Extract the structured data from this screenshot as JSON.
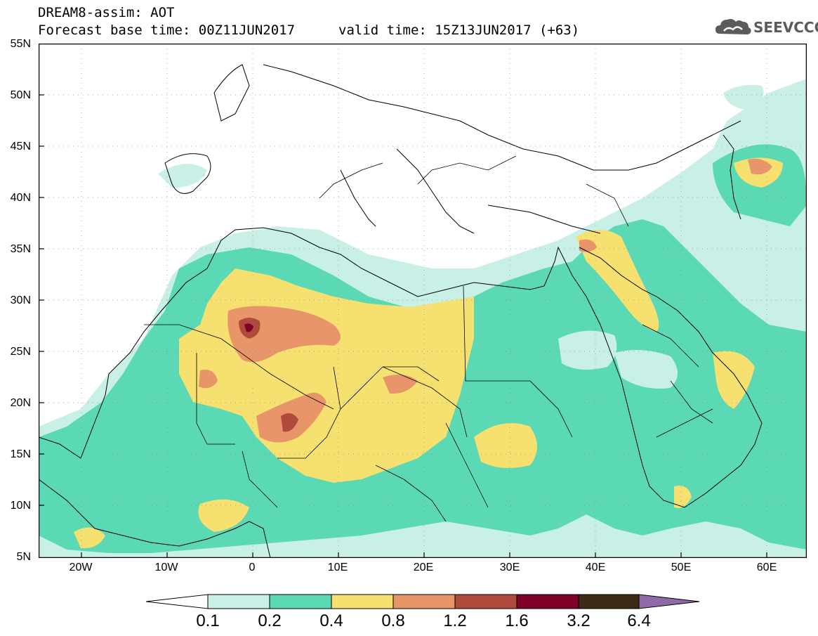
{
  "title": {
    "line1": "DREAM8-assim: AOT",
    "line2": "Forecast base time: 00Z11JUN2017",
    "valid": "valid time: 15Z13JUN2017 (+63)"
  },
  "logo": {
    "text": "SEEVCCC",
    "icon": "cloud-icon",
    "color": "#5b5b5b"
  },
  "axes": {
    "lat_labels": [
      "55N",
      "50N",
      "45N",
      "40N",
      "35N",
      "30N",
      "25N",
      "20N",
      "15N",
      "10N",
      "5N"
    ],
    "lon_labels": [
      "20W",
      "10W",
      "0",
      "10E",
      "20E",
      "30E",
      "40E",
      "50E",
      "60E"
    ]
  },
  "colorbar": {
    "thresholds": [
      "0.1",
      "0.2",
      "0.4",
      "0.8",
      "1.2",
      "1.6",
      "3.2",
      "6.4"
    ],
    "colors": [
      "#ffffff",
      "#c8f0e6",
      "#5ad9b4",
      "#f5e070",
      "#e8956a",
      "#b04a3c",
      "#800028",
      "#3d2a14",
      "#8e6aa8"
    ]
  }
}
